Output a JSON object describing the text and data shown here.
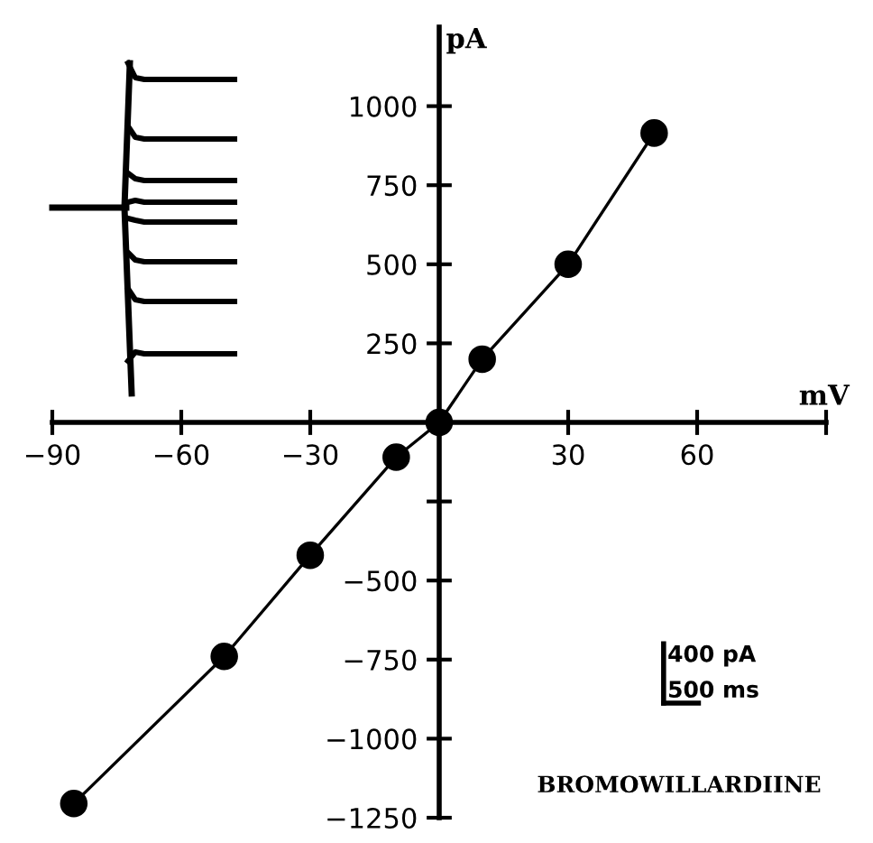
{
  "chart_data": {
    "type": "line",
    "xlabel": "mV",
    "ylabel": "pA",
    "x": [
      -85,
      -50,
      -30,
      -10,
      0,
      10,
      30,
      50
    ],
    "series": [
      {
        "color": "#000000",
        "values": [
          -1205,
          -740,
          -420,
          -110,
          0,
          200,
          500,
          915
        ]
      }
    ],
    "marker": "circle",
    "line_style": "solid",
    "xlim": [
      -90,
      90
    ],
    "ylim": [
      -1250,
      1250
    ],
    "xticks": [
      -90,
      -60,
      -30,
      30,
      60,
      {
        "value": 90,
        "label": null
      }
    ],
    "yticks": [
      -1250,
      -1000,
      -750,
      -500,
      {
        "value": -250,
        "label": null
      },
      250,
      500,
      750,
      1000
    ],
    "grid": false,
    "legend": false,
    "annotations": [
      "400 pA",
      "500 ms",
      "BROMOWILLARDIINE"
    ]
  }
}
